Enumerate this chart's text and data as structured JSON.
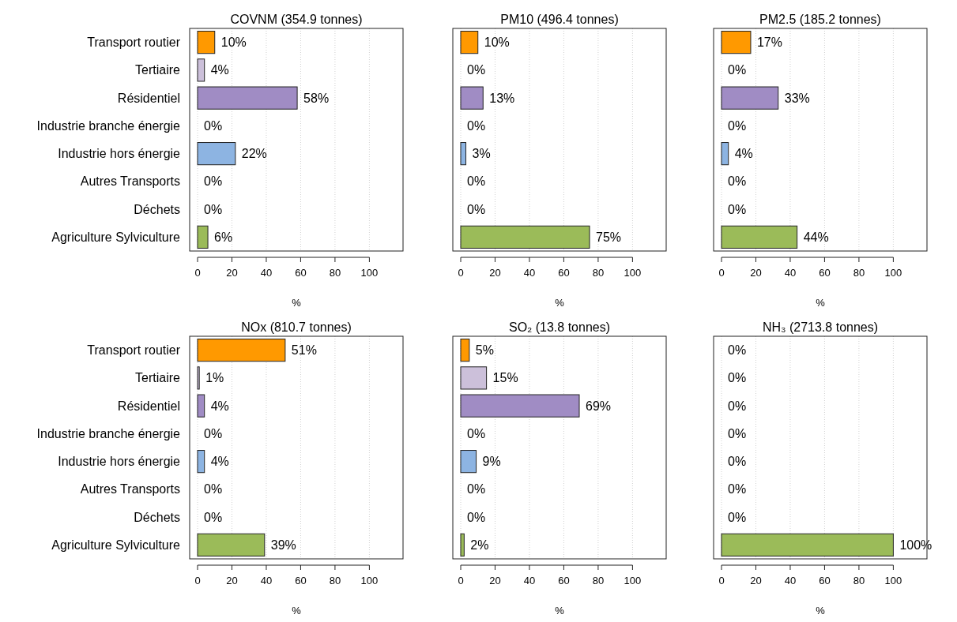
{
  "chart_data": [
    {
      "type": "bar",
      "orientation": "horizontal",
      "title": "COVNM (354.9 tonnes)",
      "xlabel": "%",
      "categories": [
        "Transport routier",
        "Tertiaire",
        "Résidentiel",
        "Industrie branche énergie",
        "Industrie hors énergie",
        "Autres Transports",
        "Déchets",
        "Agriculture Sylviculture"
      ],
      "values": [
        10,
        4,
        58,
        0,
        22,
        0,
        0,
        6
      ],
      "value_labels": [
        "10%",
        "4%",
        "58%",
        "0%",
        "22%",
        "0%",
        "0%",
        "6%"
      ],
      "colors": [
        "#ff9900",
        "#ccc0da",
        "#a08cc4",
        "#4f4f4f",
        "#8db4e2",
        "#4f4f4f",
        "#4f4f4f",
        "#9bbb59"
      ],
      "xlim": [
        -4.6,
        119.6
      ],
      "xticks": [
        0,
        20,
        40,
        60,
        80,
        100
      ],
      "grid": "x"
    },
    {
      "type": "bar",
      "orientation": "horizontal",
      "title": "PM10 (496.4 tonnes)",
      "xlabel": "%",
      "categories": [
        null,
        null,
        null,
        null,
        null,
        null,
        null,
        null
      ],
      "values": [
        10,
        0,
        13,
        0,
        3,
        0,
        0,
        75
      ],
      "value_labels": [
        "10%",
        "0%",
        "13%",
        "0%",
        "3%",
        "0%",
        "0%",
        "75%"
      ],
      "colors": [
        "#ff9900",
        "#ccc0da",
        "#a08cc4",
        "#4f4f4f",
        "#8db4e2",
        "#4f4f4f",
        "#4f4f4f",
        "#9bbb59"
      ],
      "xlim": [
        -4.6,
        119.6
      ],
      "xticks": [
        0,
        20,
        40,
        60,
        80,
        100
      ],
      "grid": "x",
      "tick_labels": "x"
    },
    {
      "type": "bar",
      "orientation": "horizontal",
      "title": "PM2.5 (185.2 tonnes)",
      "xlabel": "%",
      "categories": [
        null,
        null,
        null,
        null,
        null,
        null,
        null,
        null
      ],
      "values": [
        17,
        0,
        33,
        0,
        4,
        0,
        0,
        44
      ],
      "value_labels": [
        "17%",
        "0%",
        "33%",
        "0%",
        "4%",
        "0%",
        "0%",
        "44%"
      ],
      "colors": [
        "#ff9900",
        "#ccc0da",
        "#a08cc4",
        "#4f4f4f",
        "#8db4e2",
        "#4f4f4f",
        "#4f4f4f",
        "#9bbb59"
      ],
      "xlim": [
        -4.6,
        119.6
      ],
      "xticks": [
        0,
        20,
        40,
        60,
        80,
        100
      ],
      "grid": "x",
      "tick_labels": "x"
    },
    {
      "type": "bar",
      "orientation": "horizontal",
      "title": "NOx (810.7 tonnes)",
      "xlabel": "%",
      "categories": [
        "Transport routier",
        "Tertiaire",
        "Résidentiel",
        "Industrie branche énergie",
        "Industrie hors énergie",
        "Autres Transports",
        "Déchets",
        "Agriculture Sylviculture"
      ],
      "values": [
        51,
        1,
        4,
        0,
        4,
        0,
        0,
        39
      ],
      "value_labels": [
        "51%",
        "1%",
        "4%",
        "0%",
        "4%",
        "0%",
        "0%",
        "39%"
      ],
      "colors": [
        "#ff9900",
        "#ccc0da",
        "#a08cc4",
        "#4f4f4f",
        "#8db4e2",
        "#4f4f4f",
        "#4f4f4f",
        "#9bbb59"
      ],
      "xlim": [
        -4.6,
        119.6
      ],
      "xticks": [
        0,
        20,
        40,
        60,
        80,
        100
      ],
      "grid": "x"
    },
    {
      "type": "bar",
      "orientation": "horizontal",
      "title": "SO₂ (13.8 tonnes)",
      "xlabel": "%",
      "categories": [
        null,
        null,
        null,
        null,
        null,
        null,
        null,
        null
      ],
      "values": [
        5,
        15,
        69,
        0,
        9,
        0,
        0,
        2
      ],
      "value_labels": [
        "5%",
        "15%",
        "69%",
        "0%",
        "9%",
        "0%",
        "0%",
        "2%"
      ],
      "colors": [
        "#ff9900",
        "#ccc0da",
        "#a08cc4",
        "#4f4f4f",
        "#8db4e2",
        "#4f4f4f",
        "#4f4f4f",
        "#9bbb59"
      ],
      "xlim": [
        -4.6,
        119.6
      ],
      "xticks": [
        0,
        20,
        40,
        60,
        80,
        100
      ],
      "grid": "x",
      "tick_labels": "x"
    },
    {
      "type": "bar",
      "orientation": "horizontal",
      "title": "NH₃ (2713.8 tonnes)",
      "xlabel": "%",
      "categories": [
        null,
        null,
        null,
        null,
        null,
        null,
        null,
        null
      ],
      "values": [
        0,
        0,
        0,
        0,
        0,
        0,
        0,
        100
      ],
      "value_labels": [
        "0%",
        "0%",
        "0%",
        "0%",
        "0%",
        "0%",
        "0%",
        "100%"
      ],
      "colors": [
        "#ff9900",
        "#ccc0da",
        "#a08cc4",
        "#4f4f4f",
        "#8db4e2",
        "#4f4f4f",
        "#4f4f4f",
        "#9bbb59"
      ],
      "xlim": [
        -4.6,
        119.6
      ],
      "xticks": [
        0,
        20,
        40,
        60,
        80,
        100
      ],
      "grid": "x",
      "tick_labels": "x"
    }
  ]
}
